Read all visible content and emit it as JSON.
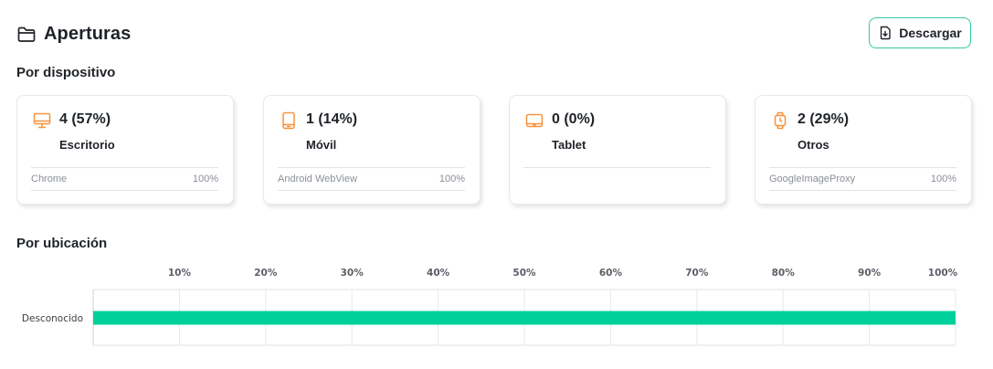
{
  "header": {
    "title": "Aperturas",
    "title_icon": "folder-icon",
    "download_label": "Descargar",
    "download_icon": "file-download-icon"
  },
  "sections": {
    "by_device": "Por dispositivo",
    "by_location": "Por ubicación"
  },
  "devices": [
    {
      "icon": "desktop-icon",
      "count": "4 (57%)",
      "label": "Escritorio",
      "browser": "Chrome",
      "browser_pct": "100%"
    },
    {
      "icon": "mobile-icon",
      "count": "1 (14%)",
      "label": "Móvil",
      "browser": "Android WebView",
      "browser_pct": "100%"
    },
    {
      "icon": "tablet-icon",
      "count": "0 (0%)",
      "label": "Tablet",
      "browser": "",
      "browser_pct": ""
    },
    {
      "icon": "watch-icon",
      "count": "2 (29%)",
      "label": "Otros",
      "browser": "GoogleImageProxy",
      "browser_pct": "100%"
    }
  ],
  "colors": {
    "accent": "#34c9a4",
    "icon_orange": "#f5923e",
    "bar": "#00d19a"
  },
  "chart_data": {
    "type": "bar",
    "orientation": "horizontal",
    "categories": [
      "Desconocido"
    ],
    "values": [
      100
    ],
    "x_ticks": [
      "10%",
      "20%",
      "30%",
      "40%",
      "50%",
      "60%",
      "70%",
      "80%",
      "90%",
      "100%"
    ],
    "xlim": [
      0,
      100
    ],
    "grid": true,
    "x_axis_position": "top"
  }
}
